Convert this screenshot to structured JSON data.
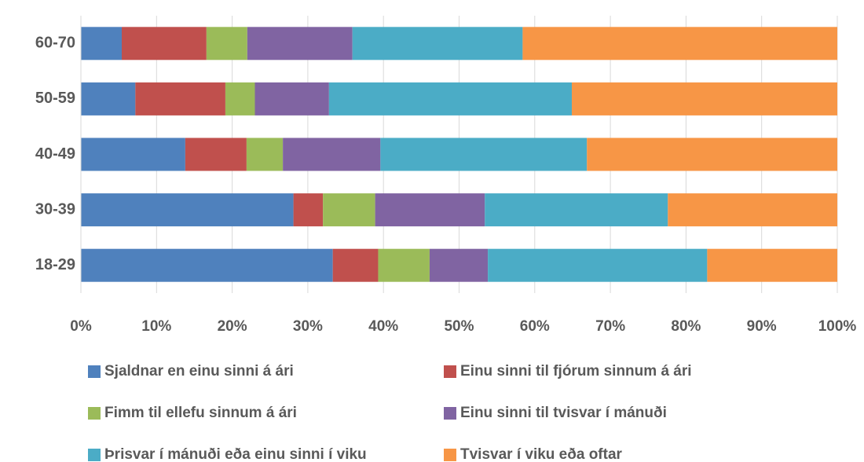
{
  "chart_data": {
    "type": "stacked_bar_horizontal",
    "categories": [
      "18-29",
      "30-39",
      "40-49",
      "50-59",
      "60-70"
    ],
    "series": [
      {
        "name": "Sjaldnar en einu sinni á ári",
        "color": "#4f81bd",
        "values": [
          33.3,
          28.1,
          13.8,
          7.2,
          5.4
        ]
      },
      {
        "name": "Einu sinni til fjórum sinnum á ári",
        "color": "#c0504d",
        "values": [
          6.0,
          3.9,
          8.1,
          11.9,
          11.2
        ]
      },
      {
        "name": "Fimm til ellefu sinnum á ári",
        "color": "#9bbb59",
        "values": [
          6.8,
          6.9,
          4.8,
          3.9,
          5.4
        ]
      },
      {
        "name": "Einu sinni til tvisvar í mánuði",
        "color": "#8064a2",
        "values": [
          7.7,
          14.5,
          12.9,
          9.8,
          13.9
        ]
      },
      {
        "name": "Þrisvar í mánuði eða einu sinni í viku",
        "color": "#4bacc6",
        "values": [
          29.0,
          24.2,
          27.3,
          32.1,
          22.5
        ]
      },
      {
        "name": "Tvisvar í viku eða oftar",
        "color": "#f79646",
        "values": [
          17.2,
          22.4,
          33.1,
          35.1,
          41.6
        ]
      }
    ],
    "xlim": [
      0,
      100
    ],
    "xticks": [
      {
        "value": 0,
        "label": "0%"
      },
      {
        "value": 10,
        "label": "10%"
      },
      {
        "value": 20,
        "label": "20%"
      },
      {
        "value": 30,
        "label": "30%"
      },
      {
        "value": 40,
        "label": "40%"
      },
      {
        "value": 50,
        "label": "50%"
      },
      {
        "value": 60,
        "label": "60%"
      },
      {
        "value": 70,
        "label": "70%"
      },
      {
        "value": 80,
        "label": "80%"
      },
      {
        "value": 90,
        "label": "90%"
      },
      {
        "value": 100,
        "label": "100%"
      }
    ],
    "grid": true
  }
}
